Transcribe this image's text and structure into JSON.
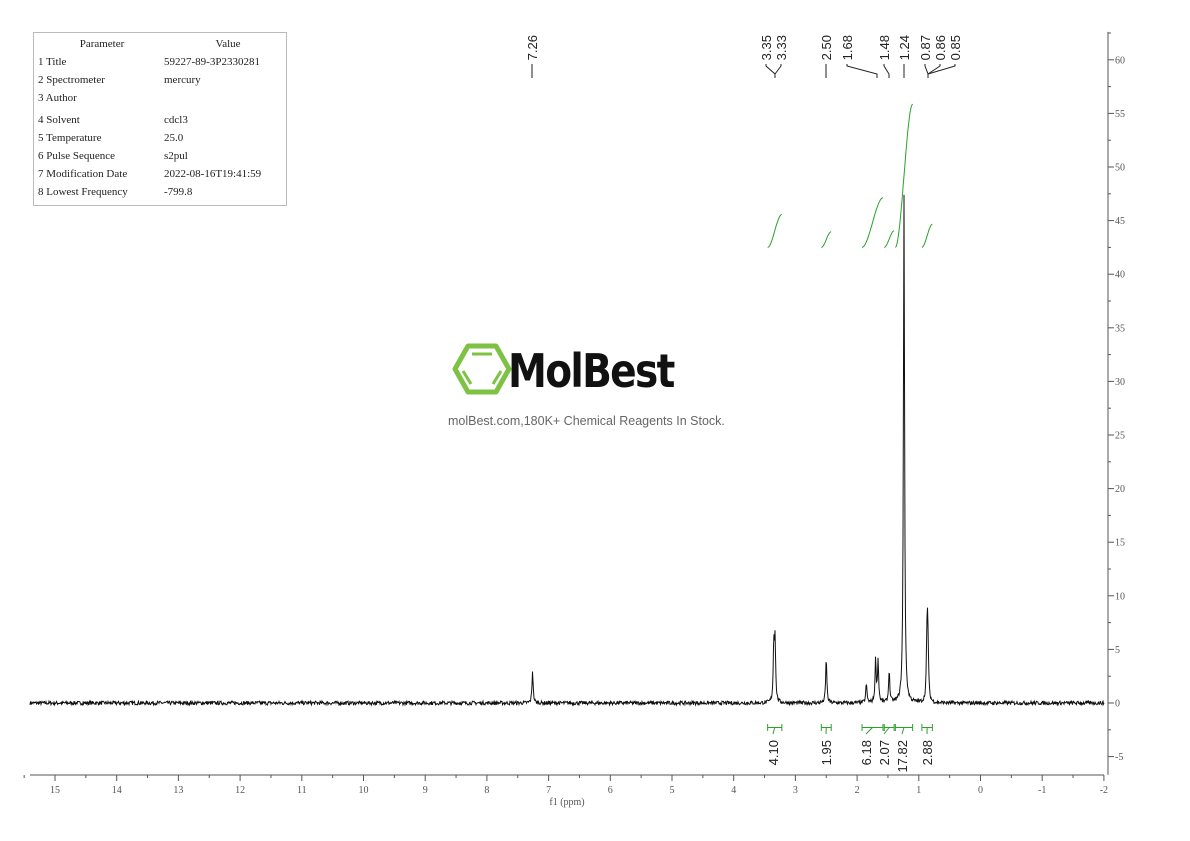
{
  "parameters": {
    "header": {
      "param": "Parameter",
      "value": "Value"
    },
    "rows": [
      {
        "param": "1 Title",
        "value": "59227-89-3P2330281"
      },
      {
        "param": "2 Spectrometer",
        "value": "mercury"
      },
      {
        "param": "3 Author",
        "value": ""
      },
      {
        "param": "4 Solvent",
        "value": "cdcl3"
      },
      {
        "param": "5 Temperature",
        "value": "25.0"
      },
      {
        "param": "6 Pulse Sequence",
        "value": "s2pul"
      },
      {
        "param": "7 Modification Date",
        "value": "2022-08-16T19:41:59"
      },
      {
        "param": "8 Lowest Frequency",
        "value": "-799.8"
      }
    ]
  },
  "watermark": {
    "brand": "MolBest",
    "tagline": "molBest.com,180K+ Chemical Reagents In Stock."
  },
  "chart_data": {
    "type": "line",
    "xlabel": "f1 (ppm)",
    "xlim": [
      15.4,
      -2
    ],
    "ylim": [
      -6.7,
      62.6
    ],
    "x_ticks": [
      15,
      14,
      13,
      12,
      11,
      10,
      9,
      8,
      7,
      6,
      5,
      4,
      3,
      2,
      1,
      0,
      -1,
      -2
    ],
    "y_ticks": [
      60,
      55,
      50,
      45,
      40,
      35,
      30,
      25,
      20,
      15,
      10,
      5,
      0,
      -5
    ],
    "colors": {
      "spectrum": "#111111",
      "integral": "#2ca02c",
      "axis": "#555555"
    },
    "peaks": [
      {
        "ppm": 7.26,
        "height": 3.0
      },
      {
        "ppm": 3.35,
        "height": 5.2
      },
      {
        "ppm": 3.33,
        "height": 5.6
      },
      {
        "ppm": 2.5,
        "height": 4.2
      },
      {
        "ppm": 1.85,
        "height": 1.8
      },
      {
        "ppm": 1.7,
        "height": 4.0
      },
      {
        "ppm": 1.66,
        "height": 3.9
      },
      {
        "ppm": 1.48,
        "height": 3.0
      },
      {
        "ppm": 1.24,
        "height": 47.5
      },
      {
        "ppm": 0.87,
        "height": 3.6
      },
      {
        "ppm": 0.86,
        "height": 5.0
      },
      {
        "ppm": 0.85,
        "height": 3.4
      }
    ],
    "peak_labels": [
      "7.26",
      "3.35",
      "3.33",
      "2.50",
      "1.68",
      "1.48",
      "1.24",
      "0.87",
      "0.86",
      "0.85"
    ],
    "integrals": [
      {
        "from": 3.45,
        "to": 3.22,
        "value": "4.10"
      },
      {
        "from": 2.58,
        "to": 2.42,
        "value": "1.95"
      },
      {
        "from": 1.92,
        "to": 1.58,
        "value": "6.18"
      },
      {
        "from": 1.56,
        "to": 1.4,
        "value": "2.07"
      },
      {
        "from": 1.38,
        "to": 1.1,
        "value": "17.82"
      },
      {
        "from": 0.95,
        "to": 0.78,
        "value": "2.88"
      }
    ]
  }
}
